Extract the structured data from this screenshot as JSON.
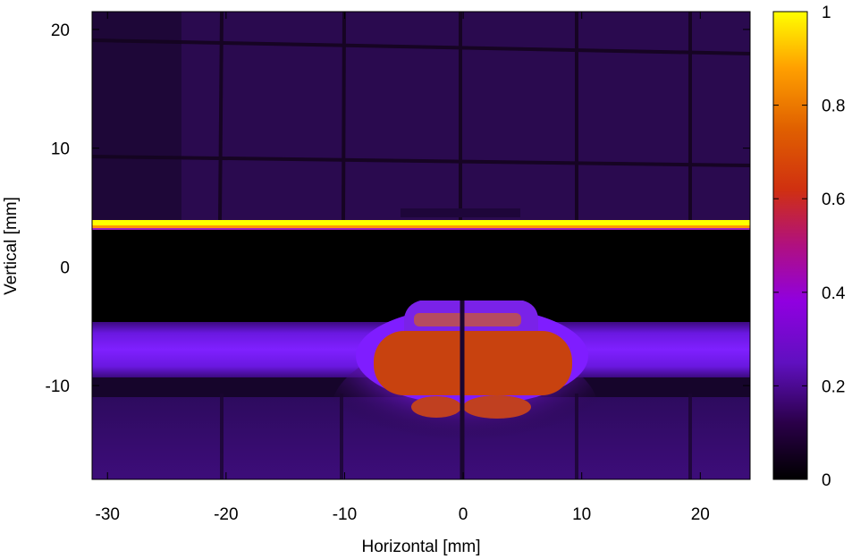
{
  "chart_data": {
    "type": "heatmap",
    "title": "",
    "xlabel": "Horizontal [mm]",
    "ylabel": "Vertical [mm]",
    "xlim": [
      -31.3,
      24.2
    ],
    "ylim": [
      -17.9,
      21.5
    ],
    "x_ticks": [
      -30,
      -20,
      -10,
      0,
      10,
      20
    ],
    "y_ticks": [
      -10,
      0,
      10,
      20
    ],
    "colorbar": {
      "range": [
        0,
        1
      ],
      "ticks": [
        0,
        0.2,
        0.4,
        0.6,
        0.8,
        1
      ],
      "palette": [
        "#000000",
        "#3a0060",
        "#8000ff",
        "#c020c0",
        "#e04000",
        "#ff9900",
        "#ffff00"
      ]
    },
    "features": [
      {
        "name": "bright horizontal line",
        "y_mm": 3.6,
        "intensity": 1.0
      },
      {
        "name": "upper dim background",
        "y_range_mm": [
          4.0,
          21.5
        ],
        "intensity": 0.1
      },
      {
        "name": "dark gap",
        "y_range_mm": [
          -3.0,
          3.2
        ],
        "intensity": 0.0
      },
      {
        "name": "beam band",
        "y_range_mm": [
          -9.5,
          -4.7
        ],
        "intensity": 0.25
      },
      {
        "name": "central hot spot",
        "x_range_mm": [
          -7.5,
          8.5
        ],
        "y_range_mm": [
          -10.5,
          -4.7
        ],
        "intensity": 0.55
      },
      {
        "name": "upper lobe",
        "x_range_mm": [
          -5.0,
          5.0
        ],
        "y_range_mm": [
          -5.5,
          -2.5
        ],
        "intensity": 0.35
      },
      {
        "name": "lower region",
        "y_range_mm": [
          -17.9,
          -10.5
        ],
        "intensity": 0.18
      }
    ]
  }
}
